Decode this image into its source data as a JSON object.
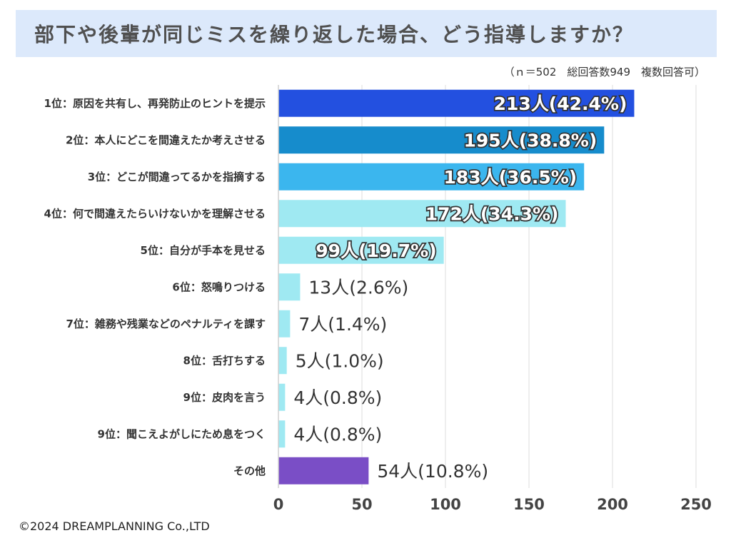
{
  "title": "部下や後輩が同じミスを繰り返した場合、どう指導しますか？",
  "note": "（ｎ＝502　総回答数949　複数回答可）",
  "copyright": "©2024 DREAMPLANNING Co.,LTD",
  "chart_data": {
    "type": "bar",
    "orientation": "horizontal",
    "title": "部下や後輩が同じミスを繰り返した場合、どう指導しますか？",
    "xlim": [
      0,
      250
    ],
    "xticks": [
      "0",
      "50",
      "100",
      "150",
      "200",
      "250"
    ],
    "grid": true,
    "categories": [
      "1位：原因を共有し、再発防止のヒントを提示",
      "2位：本人にどこを間違えたか考えさせる",
      "3位：どこが間違ってるかを指摘する",
      "4位：何で間違えたらいけないかを理解させる",
      "5位：自分が手本を見せる",
      "6位：怒鳴りつける",
      "7位：雑務や残業などのペナルティを課す",
      "8位：舌打ちする",
      "9位：皮肉を言う",
      "9位：聞こえよがしにため息をつく",
      "その他"
    ],
    "values": [
      213,
      195,
      183,
      172,
      99,
      13,
      7,
      5,
      4,
      4,
      54
    ],
    "labels": [
      "213人(42.4%)",
      "195人(38.8%)",
      "183人(36.5%)",
      "172人(34.3%)",
      "99人(19.7%)",
      "13人(2.6%)",
      "7人(1.4%)",
      "5人(1.0%)",
      "4人(0.8%)",
      "4人(0.8%)",
      "54人(10.8%)"
    ],
    "colors": [
      "#2350e0",
      "#168ccc",
      "#3bb6ee",
      "#9fe9f2",
      "#9fe9f2",
      "#9fe9f2",
      "#9fe9f2",
      "#9fe9f2",
      "#9fe9f2",
      "#9fe9f2",
      "#7a4ec6"
    ]
  }
}
